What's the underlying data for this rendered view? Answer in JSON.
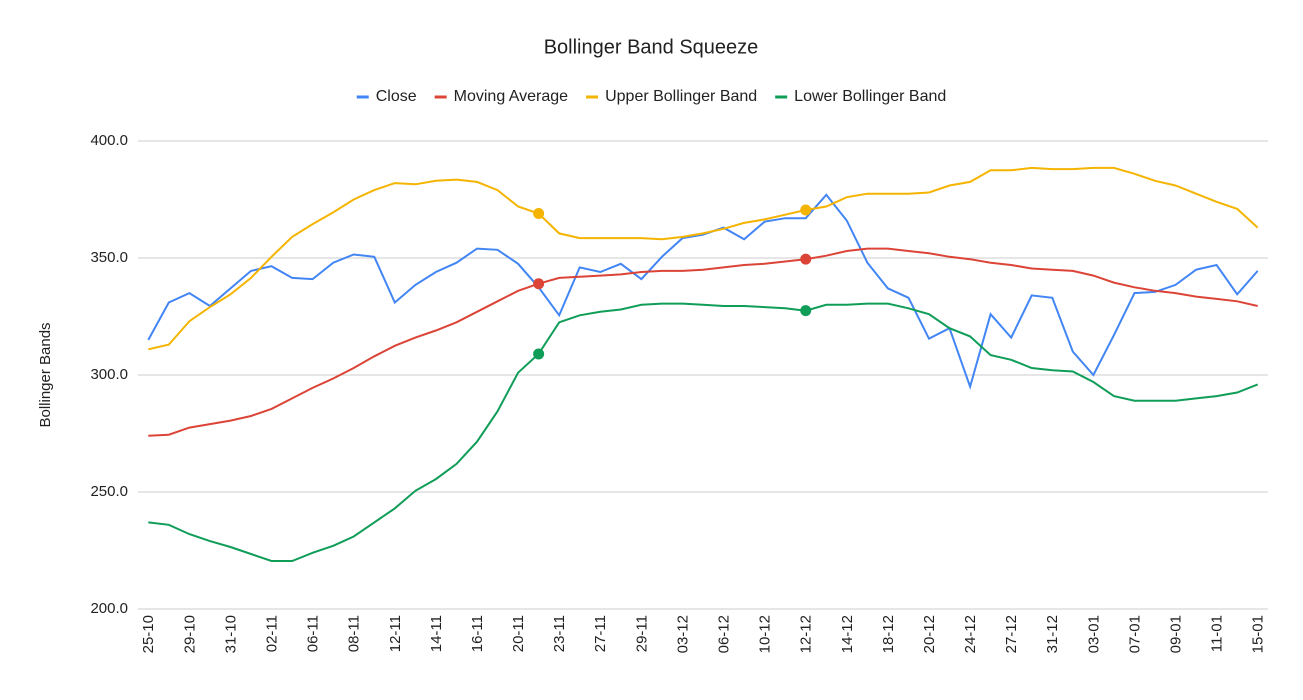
{
  "chart_data": {
    "type": "line",
    "title": "Bollinger Band Squeeze",
    "y_label": "Bollinger Bands",
    "categories": [
      "25-10",
      null,
      "29-10",
      null,
      "31-10",
      null,
      "02-11",
      null,
      "06-11",
      null,
      "08-11",
      null,
      "12-11",
      null,
      "14-11",
      null,
      "16-11",
      null,
      "20-11",
      null,
      "23-11",
      null,
      "27-11",
      null,
      "29-11",
      null,
      "03-12",
      null,
      "06-12",
      null,
      "10-12",
      null,
      "12-12",
      null,
      "14-12",
      null,
      "18-12",
      null,
      "20-12",
      null,
      "24-12",
      null,
      "27-12",
      null,
      "31-12",
      null,
      "03-01",
      null,
      "07-01",
      null,
      "09-01",
      null,
      "11-01",
      null,
      "15-01"
    ],
    "series": [
      {
        "name": "Close",
        "color": "#4285f4",
        "markers": false,
        "values": [
          315,
          331,
          335,
          329.5,
          337,
          344.5,
          346.5,
          341.5,
          341,
          348,
          351.5,
          350.5,
          331,
          338.5,
          344,
          348,
          354,
          353.5,
          347.5,
          337.5,
          325.5,
          346,
          344,
          347.5,
          341,
          350.5,
          358.5,
          360,
          363,
          358,
          365.5,
          367,
          367,
          377,
          366,
          348,
          337,
          333,
          315.5,
          320,
          295,
          326,
          316,
          334,
          333,
          310,
          300,
          317,
          335,
          335.5,
          338.5,
          345,
          347,
          334.5,
          344.5
        ]
      },
      {
        "name": "Moving Average",
        "color": "#db4437",
        "markers": true,
        "values": [
          274,
          274.5,
          277.5,
          279,
          280.5,
          282.5,
          285.5,
          290,
          294.5,
          298.5,
          303,
          308,
          312.5,
          316,
          319,
          322.5,
          327,
          331.5,
          336,
          339,
          341.5,
          342,
          342.5,
          343,
          344,
          344.5,
          344.5,
          345,
          346,
          347,
          347.5,
          348.5,
          349.5,
          351,
          353,
          354,
          354,
          353,
          352,
          350.5,
          349.5,
          348,
          347,
          345.5,
          345,
          344.5,
          342.5,
          339.5,
          337.5,
          336,
          335,
          333.5,
          332.5,
          331.5,
          329.5
        ]
      },
      {
        "name": "Upper Bollinger Band",
        "color": "#f4b400",
        "markers": true,
        "values": [
          311,
          313,
          323,
          329,
          334.5,
          341.5,
          350.5,
          359,
          364.5,
          369.5,
          375,
          379,
          382,
          381.5,
          383,
          383.5,
          382.5,
          379,
          372,
          369,
          360.5,
          358.5,
          358.5,
          358.5,
          358.5,
          358,
          359,
          360.5,
          362.5,
          365,
          366.5,
          368.5,
          370.5,
          372,
          376,
          377.5,
          377.5,
          377.5,
          378,
          381,
          382.5,
          387.5,
          387.5,
          388.5,
          388,
          388,
          388.5,
          388.5,
          386,
          383,
          381,
          377.5,
          374,
          371,
          363
        ]
      },
      {
        "name": "Lower Bollinger Band",
        "color": "#0f9d58",
        "markers": true,
        "values": [
          237,
          236,
          232,
          229,
          226.5,
          223.5,
          220.5,
          220.5,
          224,
          227,
          231,
          237,
          243,
          250.5,
          255.5,
          262,
          271.5,
          284.5,
          301,
          309,
          322.5,
          325.5,
          327,
          328,
          330,
          330.5,
          330.5,
          330,
          329.5,
          329.5,
          329,
          328.5,
          327.5,
          330,
          330,
          330.5,
          330.5,
          328.5,
          326,
          320,
          316.5,
          308.5,
          306.5,
          303,
          302,
          301.5,
          297,
          291,
          289,
          289,
          289,
          290,
          291,
          292.5,
          296
        ]
      }
    ],
    "marker_indices": [
      19,
      32
    ],
    "ylim": [
      200,
      400
    ],
    "yticks": [
      {
        "value": 200,
        "label": "200.0"
      },
      {
        "value": 250,
        "label": "250.0"
      },
      {
        "value": 300,
        "label": "300.0"
      },
      {
        "value": 350,
        "label": "350.0"
      },
      {
        "value": 400,
        "label": "400.0"
      }
    ],
    "grid": true,
    "legend": "top"
  }
}
